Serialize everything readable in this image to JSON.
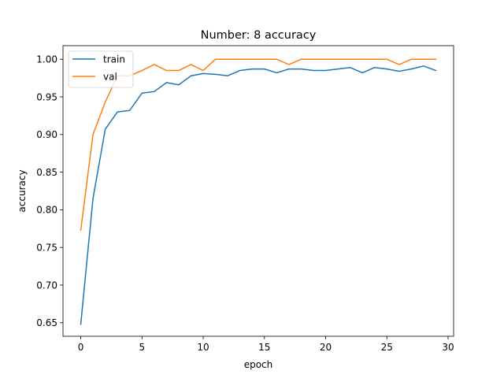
{
  "chart_data": {
    "type": "line",
    "title": "Number: 8 accuracy",
    "xlabel": "epoch",
    "ylabel": "accuracy",
    "xlim": [
      -1.45,
      30.45
    ],
    "ylim": [
      0.632,
      1.018
    ],
    "xticks": [
      0,
      5,
      10,
      15,
      20,
      25,
      30
    ],
    "yticks": [
      0.65,
      0.7,
      0.75,
      0.8,
      0.85,
      0.9,
      0.95,
      1.0
    ],
    "ytick_labels": [
      "0.65",
      "0.70",
      "0.75",
      "0.80",
      "0.85",
      "0.90",
      "0.95",
      "1.00"
    ],
    "grid": false,
    "legend_position": "top-left",
    "x": [
      0,
      1,
      2,
      3,
      4,
      5,
      6,
      7,
      8,
      9,
      10,
      11,
      12,
      13,
      14,
      15,
      16,
      17,
      18,
      19,
      20,
      21,
      22,
      23,
      24,
      25,
      26,
      27,
      28,
      29
    ],
    "series": [
      {
        "name": "train",
        "color": "#1f77b4",
        "values": [
          0.648,
          0.815,
          0.907,
          0.93,
          0.932,
          0.955,
          0.957,
          0.969,
          0.966,
          0.978,
          0.981,
          0.98,
          0.978,
          0.985,
          0.987,
          0.987,
          0.982,
          0.987,
          0.987,
          0.985,
          0.985,
          0.987,
          0.989,
          0.982,
          0.989,
          0.987,
          0.984,
          0.987,
          0.991,
          0.985
        ]
      },
      {
        "name": "val",
        "color": "#ff7f0e",
        "values": [
          0.773,
          0.9,
          0.943,
          0.978,
          0.978,
          0.985,
          0.993,
          0.985,
          0.985,
          0.993,
          0.985,
          1.0,
          1.0,
          1.0,
          1.0,
          1.0,
          1.0,
          0.993,
          1.0,
          1.0,
          1.0,
          1.0,
          1.0,
          1.0,
          1.0,
          1.0,
          0.993,
          1.0,
          1.0,
          1.0
        ]
      }
    ]
  }
}
